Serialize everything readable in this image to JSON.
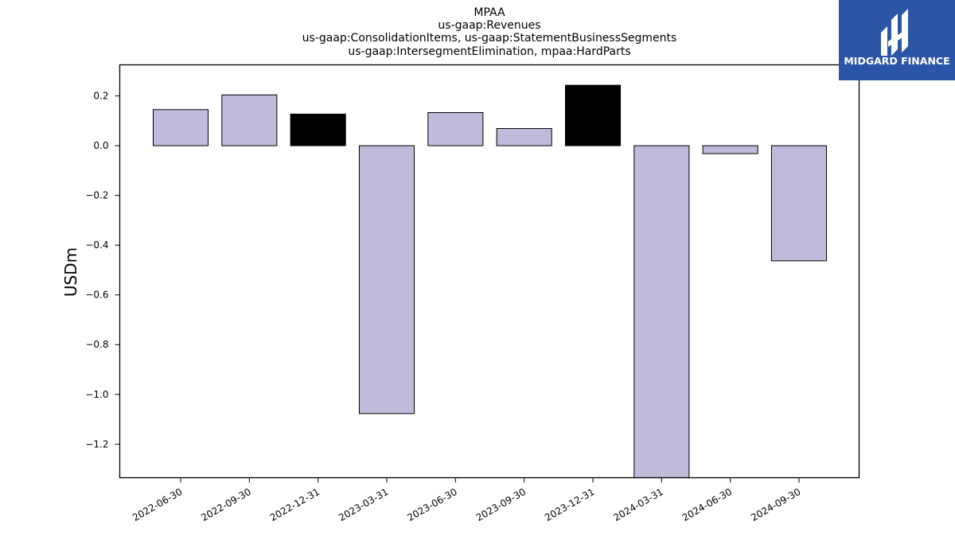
{
  "logo": {
    "name": "MIDGARD FINANCE",
    "background": "#2b55a6",
    "foreground": "#ffffff"
  },
  "chart_data": {
    "type": "bar",
    "title_lines": [
      "MPAA",
      "us-gaap:Revenues",
      "us-gaap:ConsolidationItems, us-gaap:StatementBusinessSegments",
      "us-gaap:IntersegmentElimination, mpaa:HardParts"
    ],
    "xlabel": "",
    "ylabel": "USDm",
    "categories": [
      "2022-06-30",
      "2022-09-30",
      "2022-12-31",
      "2023-03-31",
      "2023-06-30",
      "2023-09-30",
      "2023-12-31",
      "2024-03-31",
      "2024-06-30",
      "2024-09-30"
    ],
    "values": [
      0.145,
      0.204,
      0.127,
      -1.077,
      0.133,
      0.069,
      0.243,
      -1.36,
      -0.032,
      -0.463
    ],
    "bar_colors": [
      "#bebbdb",
      "#bebbdb",
      "#000000",
      "#bebbdb",
      "#bebbdb",
      "#bebbdb",
      "#000000",
      "#bebbdb",
      "#bebbdb",
      "#bebbdb"
    ],
    "ylim": [
      -1.335,
      0.325
    ],
    "yticks": [
      0.2,
      0.0,
      -0.2,
      -0.4,
      -0.6,
      -0.8,
      -1.0,
      -1.2
    ],
    "ytick_labels": [
      "0.2",
      "0.0",
      "−0.2",
      "−0.4",
      "−0.6",
      "−0.8",
      "−1.0",
      "−1.2"
    ],
    "grid": false,
    "legend": "none"
  }
}
